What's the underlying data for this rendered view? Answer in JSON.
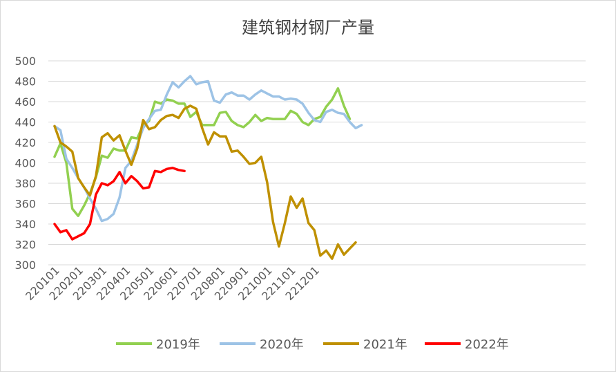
{
  "chart_data": {
    "type": "line",
    "title": "建筑钢材钢厂产量",
    "xlabel": "",
    "ylabel": "",
    "ylim": [
      300,
      500
    ],
    "yticks": [
      300,
      320,
      340,
      360,
      380,
      400,
      420,
      440,
      460,
      480,
      500
    ],
    "x_tick_labels": [
      "220101",
      "220201",
      "220301",
      "220401",
      "220501",
      "220601",
      "220701",
      "220801",
      "220901",
      "221001",
      "221101",
      "221201"
    ],
    "points_per_label": 4,
    "grid": true,
    "legend_position": "bottom",
    "series": [
      {
        "name": "2019年",
        "color": "#92d050",
        "values": [
          406,
          419,
          400,
          355,
          348,
          358,
          370,
          386,
          407,
          405,
          414,
          412,
          412,
          425,
          424,
          437,
          441,
          460,
          458,
          462,
          461,
          458,
          458,
          445,
          450,
          437,
          437,
          437,
          449,
          450,
          441,
          437,
          435,
          440,
          447,
          441,
          444,
          443,
          443,
          443,
          451,
          448,
          440,
          437,
          443,
          445,
          455,
          462,
          473,
          456,
          443
        ]
      },
      {
        "name": "2020年",
        "color": "#9dc3e6",
        "values": [
          436,
          432,
          404,
          395,
          385,
          376,
          365,
          355,
          343,
          345,
          350,
          366,
          395,
          402,
          418,
          434,
          443,
          451,
          452,
          467,
          479,
          474,
          480,
          485,
          477,
          479,
          480,
          461,
          459,
          467,
          469,
          466,
          466,
          462,
          467,
          471,
          468,
          465,
          465,
          462,
          463,
          462,
          458,
          449,
          442,
          440,
          450,
          452,
          449,
          448,
          440,
          434,
          437
        ]
      },
      {
        "name": "2021年",
        "color": "#bf9000",
        "values": [
          436,
          420,
          416,
          411,
          385,
          376,
          368,
          387,
          425,
          429,
          422,
          427,
          412,
          398,
          414,
          442,
          433,
          435,
          442,
          446,
          447,
          444,
          453,
          456,
          453,
          434,
          418,
          430,
          426,
          426,
          411,
          412,
          406,
          399,
          400,
          406,
          381,
          342,
          318,
          341,
          367,
          356,
          365,
          341,
          334,
          309,
          314,
          306,
          320,
          310,
          316,
          322
        ]
      },
      {
        "name": "2022年",
        "color": "#ff0000",
        "values": [
          340,
          332,
          334,
          325,
          328,
          331,
          340,
          369,
          380,
          378,
          382,
          391,
          380,
          387,
          382,
          375,
          376,
          392,
          391,
          394,
          395,
          393,
          392
        ]
      }
    ]
  }
}
